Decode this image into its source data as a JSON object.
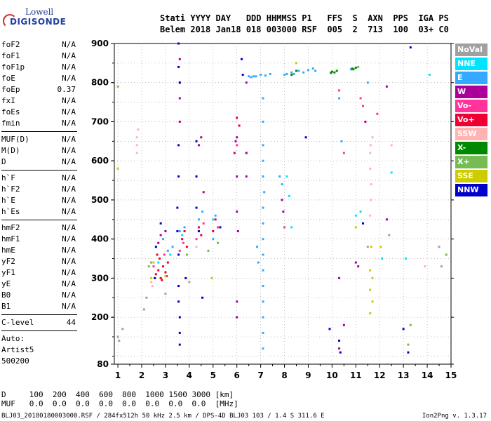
{
  "logo": {
    "line1": "Lowell",
    "line2": "DIGISONDE"
  },
  "header": {
    "labels": "Stati YYYY DAY   DDD HHMMSS P1   FFS  S  AXN  PPS  IGA PS",
    "values": "Belem 2018 Jan18 018 003000 RSF  005  2  713  100  03+ C0"
  },
  "params": [
    {
      "name": "foF2",
      "value": "N/A"
    },
    {
      "name": "foF1",
      "value": "N/A"
    },
    {
      "name": "foF1p",
      "value": "N/A"
    },
    {
      "name": "foE",
      "value": "N/A"
    },
    {
      "name": "foEp",
      "value": "0.37"
    },
    {
      "name": "fxI",
      "value": "N/A"
    },
    {
      "name": "foEs",
      "value": "N/A"
    },
    {
      "name": "fmin",
      "value": "N/A"
    },
    {
      "sep": true
    },
    {
      "name": "MUF(D)",
      "value": "N/A"
    },
    {
      "name": "M(D)",
      "value": "N/A"
    },
    {
      "name": "D",
      "value": "N/A"
    },
    {
      "sep": true
    },
    {
      "name": "h`F",
      "value": "N/A"
    },
    {
      "name": "h`F2",
      "value": "N/A"
    },
    {
      "name": "h`E",
      "value": "N/A"
    },
    {
      "name": "h`Es",
      "value": "N/A"
    },
    {
      "sep": true
    },
    {
      "name": "hmF2",
      "value": "N/A"
    },
    {
      "name": "hmF1",
      "value": "N/A"
    },
    {
      "name": "hmE",
      "value": "N/A"
    },
    {
      "name": "yF2",
      "value": "N/A"
    },
    {
      "name": "yF1",
      "value": "N/A"
    },
    {
      "name": "yE",
      "value": "N/A"
    },
    {
      "name": "B0",
      "value": "N/A"
    },
    {
      "name": "B1",
      "value": "N/A"
    },
    {
      "sep": true
    },
    {
      "name": "C-level",
      "value": "44"
    },
    {
      "sep": true
    },
    {
      "name": "Auto:",
      "value": ""
    },
    {
      "name": "Artist5",
      "value": ""
    },
    {
      "name": "500200",
      "value": ""
    }
  ],
  "legend": [
    {
      "label": "NoVal",
      "color": "#a0a0a0"
    },
    {
      "label": "NNE",
      "color": "#00e5ff"
    },
    {
      "label": "E",
      "color": "#33aaff"
    },
    {
      "label": "W",
      "color": "#aa0099"
    },
    {
      "label": "Vo-",
      "color": "#ff3399"
    },
    {
      "label": "Vo+",
      "color": "#ee0033"
    },
    {
      "label": "SSW",
      "color": "#ffb3b3"
    },
    {
      "label": "X-",
      "color": "#008800"
    },
    {
      "label": "X+",
      "color": "#77bb55"
    },
    {
      "label": "SSE",
      "color": "#cccc00"
    },
    {
      "label": "NNW",
      "color": "#0000cc"
    }
  ],
  "bottom": {
    "row1": "D     100  200  400  600  800  1000 1500 3000 [km]",
    "row2": "MUF   0.0  0.0  0.0  0.0  0.0  0.0  0.0  0.0  [MHz]"
  },
  "footer": "BLJ03_20180180003000.RSF / 284fx512h 50 kHz 2.5 km / DPS-4D BLJ03 103 / 1.4 S 311.6 E",
  "version": "Ion2Png v. 1.3.17",
  "chart_data": {
    "type": "scatter",
    "xlim": [
      0.85,
      15
    ],
    "ylim": [
      80,
      900
    ],
    "x_ticks": [
      1,
      2,
      3,
      4,
      5,
      6,
      7,
      8,
      9,
      10,
      11,
      12,
      13,
      14,
      15
    ],
    "y_ticks": [
      80,
      200,
      300,
      400,
      500,
      600,
      700,
      800,
      900
    ],
    "grid": true,
    "legend_position": "right",
    "series": [
      {
        "name": "Vo+",
        "color": "#ee0033",
        "points": [
          [
            2.6,
            310
          ],
          [
            2.7,
            320
          ],
          [
            2.8,
            300
          ],
          [
            2.9,
            330
          ],
          [
            3.0,
            315
          ],
          [
            3.1,
            340
          ],
          [
            2.75,
            350
          ],
          [
            2.85,
            295
          ],
          [
            3.05,
            305
          ],
          [
            2.65,
            360
          ],
          [
            3.7,
            400
          ],
          [
            3.8,
            420
          ],
          [
            3.9,
            380
          ],
          [
            4.4,
            430
          ],
          [
            4.5,
            410
          ],
          [
            5.0,
            420
          ],
          [
            5.1,
            450
          ],
          [
            6.0,
            710
          ],
          [
            6.1,
            690
          ]
        ]
      },
      {
        "name": "Vo-",
        "color": "#ff3399",
        "points": [
          [
            2.5,
            330
          ],
          [
            2.95,
            360
          ],
          [
            3.6,
            370
          ],
          [
            3.75,
            390
          ],
          [
            4.3,
            400
          ],
          [
            4.6,
            440
          ],
          [
            5.2,
            430
          ],
          [
            6.0,
            640
          ],
          [
            6.4,
            620
          ],
          [
            8.0,
            430
          ],
          [
            10.3,
            780
          ],
          [
            10.5,
            620
          ],
          [
            11.2,
            760
          ],
          [
            11.3,
            740
          ],
          [
            11.9,
            720
          ]
        ]
      },
      {
        "name": "W",
        "color": "#aa0099",
        "points": [
          [
            2.7,
            390
          ],
          [
            2.8,
            410
          ],
          [
            3.0,
            420
          ],
          [
            3.6,
            860
          ],
          [
            3.6,
            800
          ],
          [
            3.6,
            760
          ],
          [
            3.6,
            700
          ],
          [
            4.4,
            640
          ],
          [
            4.5,
            660
          ],
          [
            4.6,
            520
          ],
          [
            5.9,
            620
          ],
          [
            5.95,
            650
          ],
          [
            6.0,
            660
          ],
          [
            6.0,
            560
          ],
          [
            6.0,
            470
          ],
          [
            6.05,
            420
          ],
          [
            6.0,
            240
          ],
          [
            6.0,
            200
          ],
          [
            6.4,
            800
          ],
          [
            6.4,
            620
          ],
          [
            6.4,
            560
          ],
          [
            7.9,
            500
          ],
          [
            7.95,
            470
          ],
          [
            10.3,
            300
          ],
          [
            10.3,
            120
          ],
          [
            10.5,
            180
          ],
          [
            11.0,
            340
          ],
          [
            11.1,
            330
          ],
          [
            11.4,
            700
          ],
          [
            12.3,
            450
          ],
          [
            12.3,
            790
          ]
        ]
      },
      {
        "name": "E",
        "color": "#33aaff",
        "points": [
          [
            2.6,
            380
          ],
          [
            2.9,
            400
          ],
          [
            3.1,
            370
          ],
          [
            3.3,
            380
          ],
          [
            3.6,
            420
          ],
          [
            3.8,
            430
          ],
          [
            4.4,
            450
          ],
          [
            4.55,
            470
          ],
          [
            5.0,
            400
          ],
          [
            5.1,
            460
          ],
          [
            6.5,
            816
          ],
          [
            6.6,
            814
          ],
          [
            6.7,
            816
          ],
          [
            6.8,
            816
          ],
          [
            7.0,
            820
          ],
          [
            7.2,
            818
          ],
          [
            7.4,
            822
          ],
          [
            8.0,
            820
          ],
          [
            8.1,
            822
          ],
          [
            8.3,
            826
          ],
          [
            8.4,
            822
          ],
          [
            8.6,
            830
          ],
          [
            8.8,
            826
          ],
          [
            9.0,
            832
          ],
          [
            9.2,
            836
          ],
          [
            9.3,
            830
          ],
          [
            10.8,
            834
          ],
          [
            7.1,
            760
          ],
          [
            7.1,
            700
          ],
          [
            7.1,
            640
          ],
          [
            7.1,
            600
          ],
          [
            7.1,
            560
          ],
          [
            7.15,
            520
          ],
          [
            7.1,
            480
          ],
          [
            7.1,
            440
          ],
          [
            7.1,
            400
          ],
          [
            7.1,
            360
          ],
          [
            7.1,
            320
          ],
          [
            7.1,
            280
          ],
          [
            7.1,
            240
          ],
          [
            7.1,
            200
          ],
          [
            7.1,
            160
          ],
          [
            7.1,
            120
          ],
          [
            6.85,
            380
          ],
          [
            6.9,
            340
          ],
          [
            7.8,
            560
          ],
          [
            7.9,
            540
          ],
          [
            10.3,
            760
          ],
          [
            10.4,
            650
          ],
          [
            11.5,
            800
          ]
        ]
      },
      {
        "name": "NNE",
        "color": "#00e5ff",
        "points": [
          [
            2.7,
            340
          ],
          [
            3.2,
            360
          ],
          [
            3.7,
            410
          ],
          [
            5.0,
            450
          ],
          [
            8.1,
            560
          ],
          [
            8.2,
            510
          ],
          [
            8.3,
            430
          ],
          [
            11.0,
            460
          ],
          [
            11.2,
            470
          ],
          [
            12.1,
            350
          ],
          [
            12.5,
            570
          ],
          [
            13.1,
            350
          ],
          [
            14.1,
            820
          ]
        ]
      },
      {
        "name": "NNW",
        "color": "#0000cc",
        "points": [
          [
            2.55,
            300
          ],
          [
            2.6,
            380
          ],
          [
            2.8,
            440
          ],
          [
            3.55,
            900
          ],
          [
            3.55,
            840
          ],
          [
            3.6,
            800
          ],
          [
            3.55,
            640
          ],
          [
            3.55,
            560
          ],
          [
            3.5,
            480
          ],
          [
            3.5,
            420
          ],
          [
            3.55,
            360
          ],
          [
            3.55,
            280
          ],
          [
            3.55,
            240
          ],
          [
            3.6,
            200
          ],
          [
            3.6,
            160
          ],
          [
            3.6,
            130
          ],
          [
            3.85,
            300
          ],
          [
            4.3,
            650
          ],
          [
            4.3,
            560
          ],
          [
            4.3,
            480
          ],
          [
            4.4,
            420
          ],
          [
            4.55,
            250
          ],
          [
            5.3,
            430
          ],
          [
            6.2,
            860
          ],
          [
            6.25,
            820
          ],
          [
            8.9,
            660
          ],
          [
            9.9,
            170
          ],
          [
            10.3,
            140
          ],
          [
            10.35,
            110
          ],
          [
            11.3,
            440
          ],
          [
            13.0,
            170
          ],
          [
            13.2,
            110
          ],
          [
            13.3,
            890
          ]
        ]
      },
      {
        "name": "SSW",
        "color": "#ffb3b3",
        "points": [
          [
            1.8,
            660
          ],
          [
            1.8,
            640
          ],
          [
            1.8,
            620
          ],
          [
            1.85,
            680
          ],
          [
            2.4,
            290
          ],
          [
            2.45,
            280
          ],
          [
            4.3,
            380
          ],
          [
            11.6,
            460
          ],
          [
            11.62,
            500
          ],
          [
            11.65,
            540
          ],
          [
            11.6,
            580
          ],
          [
            11.6,
            620
          ],
          [
            11.62,
            640
          ],
          [
            11.7,
            660
          ],
          [
            12.5,
            640
          ],
          [
            13.9,
            330
          ]
        ]
      },
      {
        "name": "X-",
        "color": "#008800",
        "points": [
          [
            9.95,
            825
          ],
          [
            10.0,
            828
          ],
          [
            10.1,
            826
          ],
          [
            10.2,
            830
          ],
          [
            10.85,
            836
          ],
          [
            10.9,
            834
          ],
          [
            11.0,
            838
          ],
          [
            8.3,
            820
          ],
          [
            8.5,
            830
          ]
        ]
      },
      {
        "name": "X+",
        "color": "#77bb55",
        "points": [
          [
            1.0,
            790
          ],
          [
            2.3,
            330
          ],
          [
            2.4,
            340
          ],
          [
            3.9,
            360
          ],
          [
            4.8,
            370
          ],
          [
            5.2,
            390
          ],
          [
            11.1,
            840
          ],
          [
            13.2,
            130
          ],
          [
            13.3,
            180
          ],
          [
            14.8,
            360
          ]
        ]
      },
      {
        "name": "SSE",
        "color": "#cccc00",
        "points": [
          [
            1.0,
            580
          ],
          [
            2.4,
            300
          ],
          [
            2.5,
            340
          ],
          [
            3.0,
            305
          ],
          [
            4.95,
            300
          ],
          [
            11.65,
            380
          ],
          [
            11.6,
            320
          ],
          [
            11.7,
            300
          ],
          [
            11.6,
            270
          ],
          [
            11.7,
            240
          ],
          [
            11.6,
            210
          ],
          [
            12.05,
            380
          ],
          [
            11.0,
            430
          ],
          [
            8.5,
            850
          ]
        ]
      },
      {
        "name": "NoVal",
        "color": "#a0a0a0",
        "points": [
          [
            1.0,
            150
          ],
          [
            1.05,
            140
          ],
          [
            1.2,
            170
          ],
          [
            2.1,
            220
          ],
          [
            2.2,
            250
          ],
          [
            3.0,
            260
          ],
          [
            4.0,
            290
          ],
          [
            11.5,
            380
          ],
          [
            12.4,
            410
          ],
          [
            14.5,
            380
          ],
          [
            14.6,
            330
          ]
        ]
      }
    ]
  }
}
